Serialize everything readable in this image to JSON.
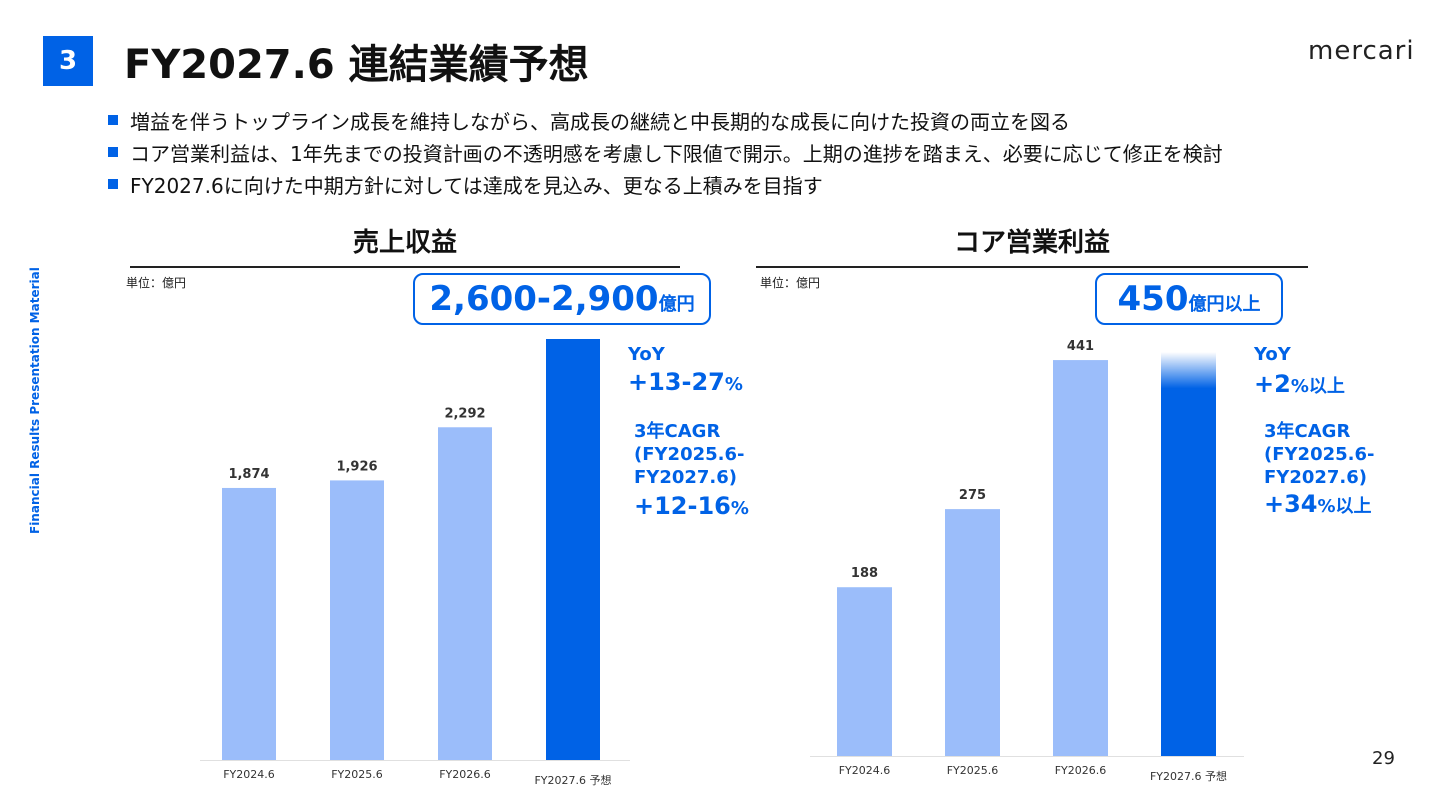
{
  "header": {
    "section_number": "3",
    "title": "FY2027.6 連結業績予想",
    "logo_text": "mercari"
  },
  "bullets": [
    "増益を伴うトップライン成長を維持しながら、高成長の継続と中長期的な成長に向けた投資の両立を図る",
    "コア営業利益は、1年先までの投資計画の不透明感を考慮し下限値で開示。上期の進捗を踏まえ、必要に応じて修正を検討",
    "FY2027.6に向けた中期方針に対しては達成を見込み、更なる上積みを目指す"
  ],
  "side_label": "Financial Results Presentation Material",
  "page_number": "29",
  "colors": {
    "accent": "#0062e6",
    "bar_light": "#9bbdfa",
    "bar_forecast": "#0062e6"
  },
  "revenue_panel": {
    "title": "売上収益",
    "unit": "単位：億円",
    "target_value": "2,600-2,900",
    "target_unit": "億円",
    "yoy_label": "YoY",
    "yoy_value": "+13-27",
    "yoy_suffix": "%",
    "cagr_label": "3年CAGR\n(FY2025.6-\nFY2027.6)",
    "cagr_value": "+12-16",
    "cagr_suffix": "%"
  },
  "core_panel": {
    "title": "コア営業利益",
    "unit": "単位：億円",
    "target_value": "450",
    "target_unit": "億円以上",
    "yoy_label": "YoY",
    "yoy_value": "+2",
    "yoy_suffix": "%以上",
    "cagr_label": "3年CAGR\n(FY2025.6-\nFY2027.6)",
    "cagr_value": "+34",
    "cagr_suffix": "%以上"
  },
  "chart_data": [
    {
      "type": "bar",
      "title": "売上収益",
      "categories": [
        "FY2024.6",
        "FY2025.6",
        "FY2026.6",
        "FY2027.6 予想"
      ],
      "values": [
        1874,
        1926,
        2292,
        2900
      ],
      "value_labels": [
        "1,874",
        "1,926",
        "2,292",
        ""
      ],
      "forecast_range": [
        2600,
        2900
      ],
      "ylim": [
        0,
        2900
      ],
      "grid": false
    },
    {
      "type": "bar",
      "title": "コア営業利益",
      "categories": [
        "FY2024.6",
        "FY2025.6",
        "FY2026.6",
        "FY2027.6 予想"
      ],
      "values": [
        188,
        275,
        441,
        450
      ],
      "value_labels": [
        "188",
        "275",
        "441",
        ""
      ],
      "forecast_floor": 450,
      "ylim": [
        0,
        450
      ],
      "grid": false
    }
  ]
}
